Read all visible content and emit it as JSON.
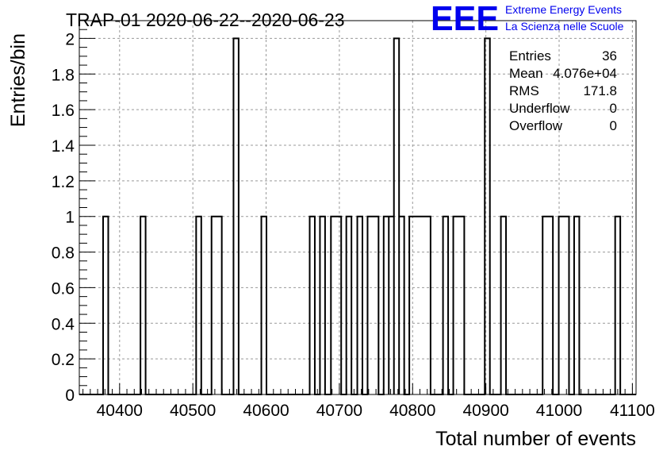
{
  "title": "TRAP-01 2020-06-22--2020-06-23",
  "logo": {
    "letters": "EEE",
    "line1": "Extreme Energy Events",
    "line2": "La Scienza nelle Scuole",
    "color": "#0000ee"
  },
  "stats": [
    {
      "label": "Entries",
      "value": "36"
    },
    {
      "label": "Mean",
      "value": "4.076e+04"
    },
    {
      "label": "RMS",
      "value": "171.8"
    },
    {
      "label": "Underflow",
      "value": "0"
    },
    {
      "label": "Overflow",
      "value": "0"
    }
  ],
  "chart_data": {
    "type": "bar",
    "style": "step-histogram",
    "title": "TRAP-01 2020-06-22--2020-06-23",
    "xlabel": "Total number of events",
    "ylabel": "Entries/bin",
    "xlim": [
      40345,
      41105
    ],
    "ylim": [
      0,
      2.1
    ],
    "xticks": [
      40400,
      40500,
      40600,
      40700,
      40800,
      40900,
      41000,
      41100
    ],
    "xtick_labels": [
      "40400",
      "40500",
      "40600",
      "40700",
      "40800",
      "40900",
      "41000",
      "41100"
    ],
    "yticks": [
      0,
      0.2,
      0.4,
      0.6,
      0.8,
      1,
      1.2,
      1.4,
      1.6,
      1.8,
      2
    ],
    "ytick_labels": [
      "0",
      "0.2",
      "0.4",
      "0.6",
      "0.8",
      "1",
      "1.2",
      "1.4",
      "1.6",
      "1.8",
      "2"
    ],
    "grid": true,
    "bins": [
      {
        "x0": 40377.5,
        "x1": 40384.5,
        "count": 1
      },
      {
        "x0": 40428.5,
        "x1": 40435.5,
        "count": 1
      },
      {
        "x0": 40504.5,
        "x1": 40511.5,
        "count": 1
      },
      {
        "x0": 40525.5,
        "x1": 40539.5,
        "count": 1
      },
      {
        "x0": 40555.5,
        "x1": 40562.5,
        "count": 2
      },
      {
        "x0": 40593.5,
        "x1": 40600.5,
        "count": 1
      },
      {
        "x0": 40659.5,
        "x1": 40666.5,
        "count": 1
      },
      {
        "x0": 40673.5,
        "x1": 40680.5,
        "count": 1
      },
      {
        "x0": 40688.5,
        "x1": 40702.5,
        "count": 1
      },
      {
        "x0": 40709.5,
        "x1": 40716.5,
        "count": 1
      },
      {
        "x0": 40724.5,
        "x1": 40731.5,
        "count": 1
      },
      {
        "x0": 40738.5,
        "x1": 40753.5,
        "count": 1
      },
      {
        "x0": 40760.5,
        "x1": 40767.5,
        "count": 1
      },
      {
        "x0": 40767.5,
        "x1": 40774.5,
        "count": 1
      },
      {
        "x0": 40774.5,
        "x1": 40781.5,
        "count": 2
      },
      {
        "x0": 40781.5,
        "x1": 40788.5,
        "count": 1
      },
      {
        "x0": 40795.5,
        "x1": 40824.5,
        "count": 1
      },
      {
        "x0": 40841.5,
        "x1": 40848.5,
        "count": 1
      },
      {
        "x0": 40855.5,
        "x1": 40870.5,
        "count": 1
      },
      {
        "x0": 40898.5,
        "x1": 40905.5,
        "count": 2
      },
      {
        "x0": 40920.5,
        "x1": 40927.5,
        "count": 1
      },
      {
        "x0": 40977.5,
        "x1": 40991.5,
        "count": 1
      },
      {
        "x0": 40999.5,
        "x1": 41013.5,
        "count": 1
      },
      {
        "x0": 41020.5,
        "x1": 41027.5,
        "count": 1
      },
      {
        "x0": 41076.5,
        "x1": 41083.5,
        "count": 1
      }
    ]
  }
}
